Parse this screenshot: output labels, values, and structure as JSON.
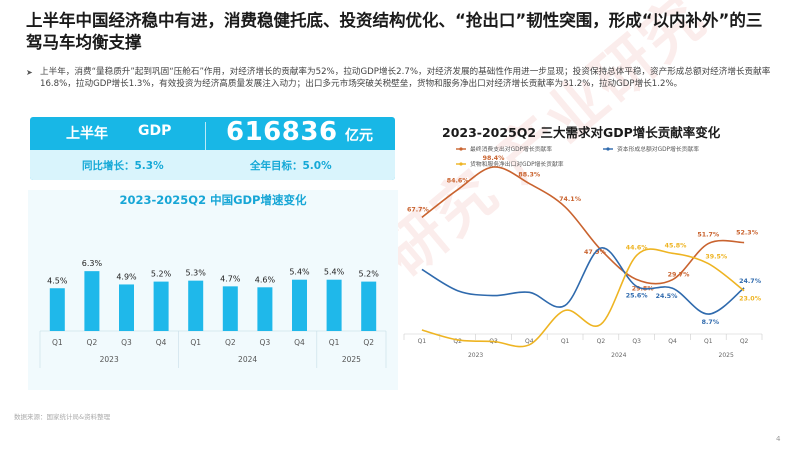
{
  "header": {
    "title": "上半年中国经济稳中有进，消费稳健托底、投资结构优化、“抢出口”韧性突围，形成“以内补外”的三驾马车均衡支撑",
    "bullet": "上半年，消费“量稳质升”起到巩固“压舱石”作用，对经济增长的贡献率为52%，拉动GDP增长2.7%，对经济发展的基础性作用进一步显现；投资保持总体平稳，资产形成总额对经济增长贡献率16.8%，拉动GDP增长1.3%，有效投资为经济高质量发展注入动力；出口多元市场突破关税壁垒，货物和服务净出口对经济增长贡献率为31.2%，拉动GDP增长1.2%。"
  },
  "banner": {
    "label_period": "上半年",
    "label_gdp": "GDP",
    "value": "616836",
    "unit": "亿元",
    "yoy": "同比增长：5.3%",
    "target": "全年目标：5.0%"
  },
  "colors": {
    "banner": "#18b7e6",
    "bars": "#1fb8ea",
    "consumption": "#c9632f",
    "capital": "#2f6aad",
    "net_export": "#eeb422"
  },
  "chart_data": [
    {
      "type": "bar",
      "title": "2023-2025Q2 中国GDP增速变化",
      "categories": [
        "Q1",
        "Q2",
        "Q3",
        "Q4",
        "Q1",
        "Q2",
        "Q3",
        "Q4",
        "Q1",
        "Q2"
      ],
      "year_labels": [
        "2023",
        "2024",
        "2025"
      ],
      "values": [
        4.5,
        6.3,
        4.9,
        5.2,
        5.3,
        4.7,
        4.6,
        5.4,
        5.4,
        5.2
      ],
      "labels": [
        "4.5%",
        "6.3%",
        "4.9%",
        "5.2%",
        "5.3%",
        "4.7%",
        "4.6%",
        "5.4%",
        "5.4%",
        "5.2%"
      ],
      "ylim": [
        0,
        8
      ]
    },
    {
      "type": "line",
      "title": "2023-2025Q2 三大需求对GDP增长贡献率变化",
      "categories": [
        "Q1",
        "Q2",
        "Q3",
        "Q4",
        "Q1",
        "Q2",
        "Q3",
        "Q4",
        "Q1",
        "Q2"
      ],
      "year_labels": [
        "2023",
        "2024",
        "2025"
      ],
      "ylim": [
        -15,
        110
      ],
      "legend_position": "top",
      "series": [
        {
          "name": "最终消费支出对GDP增长贡献率",
          "values": [
            67.7,
            84.6,
            98.4,
            88.3,
            74.1,
            47.9,
            29.8,
            29.7,
            51.7,
            52.3
          ],
          "labels": [
            "67.7%",
            "84.6%",
            "98.4%",
            "88.3%",
            "74.1%",
            "47.9%",
            "29.8%",
            "29.7%",
            "51.7%",
            "52.3%"
          ]
        },
        {
          "name": "资本形成总额对GDP增长贡献率",
          "values": [
            36.0,
            23.0,
            20.0,
            22.0,
            14.0,
            49.0,
            25.6,
            24.5,
            8.7,
            24.7
          ],
          "labels": [
            "",
            "",
            "",
            "",
            "",
            "",
            "25.6%",
            "24.5%",
            "8.7%",
            "24.7%"
          ]
        },
        {
          "name": "货物和服务净出口对GDP增长贡献率",
          "values": [
            -1.0,
            -7.0,
            -8.0,
            -10.0,
            11.0,
            2.5,
            44.6,
            45.8,
            39.5,
            23.0
          ],
          "labels": [
            "",
            "",
            "",
            "",
            "",
            "",
            "44.6%",
            "45.8%",
            "39.5%",
            "23.0%"
          ]
        }
      ]
    }
  ],
  "footer": {
    "source": "数据来源：国家统计局&资料整理",
    "page": "4"
  }
}
